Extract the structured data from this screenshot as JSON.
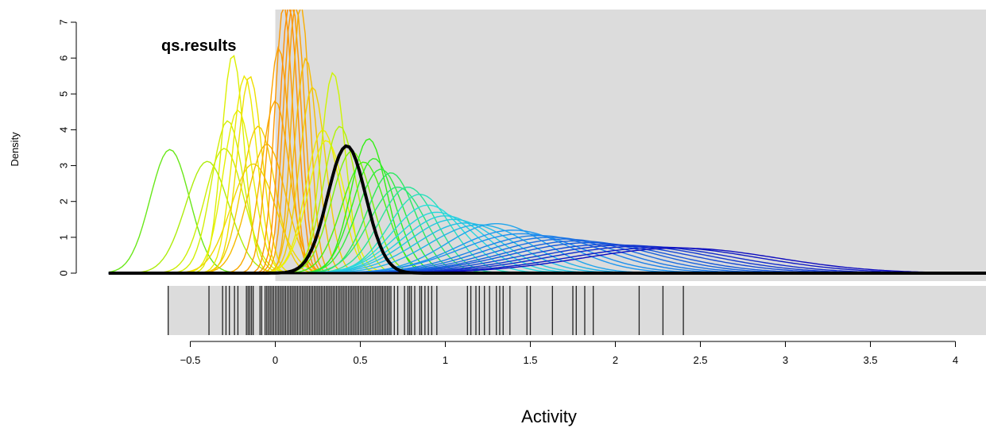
{
  "chart_data": {
    "type": "density",
    "title": "qs.results",
    "xlabel": "Activity",
    "ylabel": "Density",
    "xlim": [
      -0.5,
      4.2
    ],
    "ylim": [
      0,
      7
    ],
    "x_ticks": [
      -0.5,
      0,
      0.5,
      1,
      1.5,
      2,
      2.5,
      3,
      3.5,
      4
    ],
    "x_tick_labels": [
      "−0.5",
      "0",
      "0.5",
      "1",
      "1.5",
      "2",
      "2.5",
      "3",
      "3.5",
      "4"
    ],
    "y_ticks": [
      0,
      1,
      2,
      3,
      4,
      5,
      6,
      7
    ],
    "y_tick_labels": [
      "0",
      "1",
      "2",
      "3",
      "4",
      "5",
      "6",
      "7"
    ],
    "shaded_region_x_from": 0,
    "grid": false,
    "highlight_curve": {
      "mean": 0.42,
      "peak_density": 3.55,
      "color": "#000000"
    },
    "curve_peaks": [
      {
        "mean": -0.62,
        "peak": 3.45
      },
      {
        "mean": -0.4,
        "peak": 3.12
      },
      {
        "mean": -0.3,
        "peak": 3.48
      },
      {
        "mean": -0.28,
        "peak": 4.25
      },
      {
        "mean": -0.25,
        "peak": 6.1
      },
      {
        "mean": -0.22,
        "peak": 4.55
      },
      {
        "mean": -0.18,
        "peak": 5.5
      },
      {
        "mean": -0.15,
        "peak": 5.5
      },
      {
        "mean": -0.13,
        "peak": 3.05
      },
      {
        "mean": -0.1,
        "peak": 4.1
      },
      {
        "mean": -0.05,
        "peak": 3.6
      },
      {
        "mean": 0.0,
        "peak": 4.8
      },
      {
        "mean": 0.02,
        "peak": 6.3
      },
      {
        "mean": 0.05,
        "peak": 7.5
      },
      {
        "mean": 0.08,
        "peak": 7.5
      },
      {
        "mean": 0.1,
        "peak": 7.5
      },
      {
        "mean": 0.12,
        "peak": 7.5
      },
      {
        "mean": 0.15,
        "peak": 7.5
      },
      {
        "mean": 0.18,
        "peak": 6.0
      },
      {
        "mean": 0.22,
        "peak": 5.2
      },
      {
        "mean": 0.28,
        "peak": 4.0
      },
      {
        "mean": 0.3,
        "peak": 3.7
      },
      {
        "mean": 0.34,
        "peak": 5.6
      },
      {
        "mean": 0.38,
        "peak": 4.1
      },
      {
        "mean": 0.45,
        "peak": 3.4
      },
      {
        "mean": 0.52,
        "peak": 3.1
      },
      {
        "mean": 0.55,
        "peak": 3.75
      },
      {
        "mean": 0.58,
        "peak": 3.2
      },
      {
        "mean": 0.62,
        "peak": 2.9
      },
      {
        "mean": 0.68,
        "peak": 2.8
      },
      {
        "mean": 0.72,
        "peak": 2.4
      },
      {
        "mean": 0.78,
        "peak": 2.4
      },
      {
        "mean": 0.85,
        "peak": 2.2
      },
      {
        "mean": 0.9,
        "peak": 1.9
      },
      {
        "mean": 0.95,
        "peak": 1.7
      },
      {
        "mean": 1.0,
        "peak": 1.6
      },
      {
        "mean": 1.05,
        "peak": 1.5
      },
      {
        "mean": 1.12,
        "peak": 1.4
      },
      {
        "mean": 1.2,
        "peak": 1.35
      },
      {
        "mean": 1.3,
        "peak": 1.38
      },
      {
        "mean": 1.4,
        "peak": 1.2
      },
      {
        "mean": 1.45,
        "peak": 1.1
      },
      {
        "mean": 1.55,
        "peak": 1.05
      },
      {
        "mean": 1.62,
        "peak": 1.0
      },
      {
        "mean": 1.7,
        "peak": 0.95
      },
      {
        "mean": 1.78,
        "peak": 0.9
      },
      {
        "mean": 1.85,
        "peak": 0.85
      },
      {
        "mean": 1.95,
        "peak": 0.8
      },
      {
        "mean": 2.05,
        "peak": 0.78
      },
      {
        "mean": 2.15,
        "peak": 0.75
      },
      {
        "mean": 2.28,
        "peak": 0.72
      },
      {
        "mean": 2.38,
        "peak": 0.7
      }
    ],
    "rug_values": [
      -0.63,
      -0.39,
      -0.31,
      -0.29,
      -0.27,
      -0.24,
      -0.22,
      -0.17,
      -0.16,
      -0.15,
      -0.14,
      -0.13,
      -0.09,
      -0.08,
      -0.06,
      -0.05,
      -0.04,
      -0.03,
      -0.02,
      -0.01,
      0.0,
      0.01,
      0.02,
      0.03,
      0.04,
      0.05,
      0.06,
      0.07,
      0.08,
      0.09,
      0.1,
      0.11,
      0.12,
      0.13,
      0.14,
      0.15,
      0.16,
      0.17,
      0.18,
      0.19,
      0.2,
      0.21,
      0.22,
      0.23,
      0.24,
      0.25,
      0.26,
      0.27,
      0.28,
      0.29,
      0.3,
      0.31,
      0.32,
      0.33,
      0.34,
      0.35,
      0.36,
      0.37,
      0.38,
      0.39,
      0.4,
      0.41,
      0.42,
      0.43,
      0.44,
      0.45,
      0.46,
      0.47,
      0.48,
      0.49,
      0.5,
      0.51,
      0.52,
      0.53,
      0.54,
      0.55,
      0.56,
      0.57,
      0.58,
      0.59,
      0.6,
      0.61,
      0.62,
      0.63,
      0.64,
      0.65,
      0.66,
      0.67,
      0.68,
      0.7,
      0.72,
      0.76,
      0.78,
      0.79,
      0.8,
      0.82,
      0.85,
      0.86,
      0.88,
      0.9,
      0.92,
      0.95,
      1.13,
      1.15,
      1.18,
      1.2,
      1.23,
      1.26,
      1.3,
      1.32,
      1.34,
      1.38,
      1.48,
      1.5,
      1.63,
      1.75,
      1.77,
      1.82,
      1.87,
      2.14,
      2.28,
      2.4
    ]
  }
}
